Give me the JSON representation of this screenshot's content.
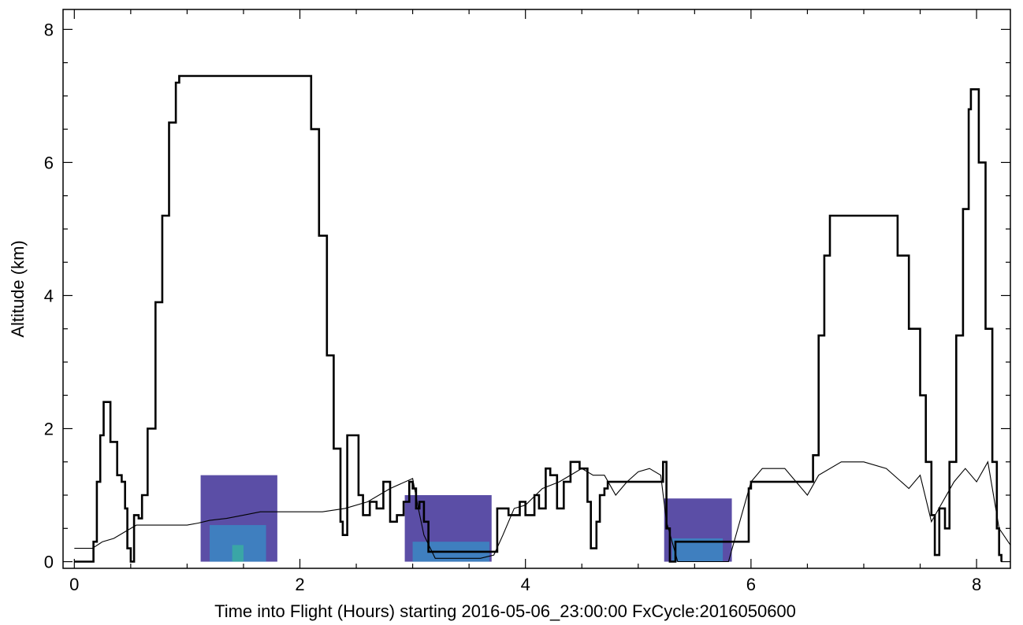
{
  "chart_data": {
    "type": "line",
    "title": "",
    "xlabel": "Time into Flight (Hours) starting 2016-05-06_23:00:00  FxCycle:2016050600",
    "ylabel": "Altitude (km)",
    "xlim": [
      -0.1,
      8.3
    ],
    "ylim": [
      -0.1,
      8.3
    ],
    "x_ticks": [
      0,
      2,
      4,
      6,
      8
    ],
    "y_ticks": [
      0,
      2,
      4,
      6,
      8
    ],
    "grid": false,
    "legend": "none",
    "colors": {
      "flight_track": "#000000",
      "terrain": "#000000",
      "level_1": "#5b4ea6",
      "level_2": "#3f7fbf",
      "level_3": "#3aa6a6"
    },
    "series": [
      {
        "style": "thick",
        "points": [
          [
            0.0,
            0.0
          ],
          [
            0.16,
            0.0
          ],
          [
            0.17,
            0.3
          ],
          [
            0.2,
            1.2
          ],
          [
            0.23,
            1.9
          ],
          [
            0.26,
            2.4
          ],
          [
            0.29,
            2.4
          ],
          [
            0.32,
            1.8
          ],
          [
            0.35,
            1.8
          ],
          [
            0.38,
            1.3
          ],
          [
            0.42,
            1.2
          ],
          [
            0.45,
            0.8
          ],
          [
            0.47,
            0.2
          ],
          [
            0.5,
            0.0
          ],
          [
            0.53,
            0.7
          ],
          [
            0.57,
            0.65
          ],
          [
            0.6,
            1.0
          ],
          [
            0.65,
            2.0
          ],
          [
            0.72,
            3.9
          ],
          [
            0.78,
            5.2
          ],
          [
            0.84,
            6.6
          ],
          [
            0.9,
            7.2
          ],
          [
            0.93,
            7.3
          ],
          [
            2.05,
            7.3
          ],
          [
            2.1,
            6.5
          ],
          [
            2.17,
            4.9
          ],
          [
            2.24,
            3.1
          ],
          [
            2.3,
            1.7
          ],
          [
            2.36,
            0.6
          ],
          [
            2.38,
            0.4
          ],
          [
            2.42,
            1.9
          ],
          [
            2.48,
            1.9
          ],
          [
            2.52,
            1.0
          ],
          [
            2.56,
            0.7
          ],
          [
            2.62,
            0.9
          ],
          [
            2.68,
            0.8
          ],
          [
            2.74,
            1.2
          ],
          [
            2.8,
            0.6
          ],
          [
            2.86,
            0.7
          ],
          [
            2.92,
            0.9
          ],
          [
            2.97,
            1.2
          ],
          [
            3.0,
            1.1
          ],
          [
            3.03,
            0.8
          ],
          [
            3.06,
            0.9
          ],
          [
            3.1,
            0.6
          ],
          [
            3.14,
            0.15
          ],
          [
            3.5,
            0.15
          ],
          [
            3.7,
            0.15
          ],
          [
            3.75,
            0.8
          ],
          [
            3.85,
            0.7
          ],
          [
            3.95,
            0.9
          ],
          [
            4.0,
            0.7
          ],
          [
            4.08,
            1.0
          ],
          [
            4.12,
            0.8
          ],
          [
            4.18,
            1.4
          ],
          [
            4.22,
            1.3
          ],
          [
            4.28,
            0.8
          ],
          [
            4.34,
            1.2
          ],
          [
            4.4,
            1.5
          ],
          [
            4.48,
            1.4
          ],
          [
            4.55,
            0.9
          ],
          [
            4.58,
            0.2
          ],
          [
            4.63,
            0.6
          ],
          [
            4.66,
            1.0
          ],
          [
            4.7,
            1.1
          ],
          [
            4.73,
            1.2
          ],
          [
            4.78,
            1.2
          ],
          [
            5.2,
            1.2
          ],
          [
            5.22,
            1.5
          ],
          [
            5.25,
            0.5
          ],
          [
            5.28,
            0.0
          ],
          [
            5.33,
            0.3
          ],
          [
            5.9,
            0.3
          ],
          [
            5.98,
            1.1
          ],
          [
            6.0,
            1.2
          ],
          [
            6.5,
            1.2
          ],
          [
            6.55,
            1.6
          ],
          [
            6.6,
            3.4
          ],
          [
            6.65,
            4.6
          ],
          [
            6.7,
            5.2
          ],
          [
            7.25,
            5.2
          ],
          [
            7.3,
            4.6
          ],
          [
            7.4,
            3.5
          ],
          [
            7.5,
            2.5
          ],
          [
            7.55,
            1.5
          ],
          [
            7.6,
            0.7
          ],
          [
            7.63,
            0.1
          ],
          [
            7.67,
            0.8
          ],
          [
            7.72,
            0.5
          ],
          [
            7.76,
            1.5
          ],
          [
            7.82,
            3.4
          ],
          [
            7.88,
            5.3
          ],
          [
            7.93,
            6.8
          ],
          [
            7.95,
            7.1
          ],
          [
            7.98,
            7.1
          ],
          [
            8.02,
            6.0
          ],
          [
            8.08,
            3.5
          ],
          [
            8.14,
            1.5
          ],
          [
            8.18,
            0.5
          ],
          [
            8.2,
            0.1
          ],
          [
            8.22,
            0.0
          ]
        ]
      },
      {
        "style": "thin",
        "points": [
          [
            0.0,
            0.2
          ],
          [
            0.16,
            0.2
          ],
          [
            0.25,
            0.3
          ],
          [
            0.35,
            0.35
          ],
          [
            0.45,
            0.45
          ],
          [
            0.55,
            0.55
          ],
          [
            0.7,
            0.55
          ],
          [
            0.85,
            0.55
          ],
          [
            1.0,
            0.55
          ],
          [
            1.1,
            0.58
          ],
          [
            1.2,
            0.62
          ],
          [
            1.35,
            0.65
          ],
          [
            1.5,
            0.7
          ],
          [
            1.65,
            0.75
          ],
          [
            1.8,
            0.75
          ],
          [
            2.0,
            0.75
          ],
          [
            2.2,
            0.75
          ],
          [
            2.4,
            0.8
          ],
          [
            2.6,
            0.9
          ],
          [
            2.8,
            1.1
          ],
          [
            3.0,
            1.25
          ],
          [
            3.05,
            0.8
          ],
          [
            3.1,
            0.4
          ],
          [
            3.2,
            0.05
          ],
          [
            3.5,
            0.05
          ],
          [
            3.6,
            0.05
          ],
          [
            3.72,
            0.1
          ],
          [
            3.8,
            0.4
          ],
          [
            3.9,
            0.8
          ],
          [
            4.0,
            0.85
          ],
          [
            4.15,
            1.1
          ],
          [
            4.3,
            1.2
          ],
          [
            4.45,
            1.35
          ],
          [
            4.5,
            1.4
          ],
          [
            4.6,
            1.3
          ],
          [
            4.7,
            1.3
          ],
          [
            4.8,
            1.0
          ],
          [
            4.9,
            1.2
          ],
          [
            5.0,
            1.35
          ],
          [
            5.1,
            1.4
          ],
          [
            5.2,
            1.3
          ],
          [
            5.25,
            0.6
          ],
          [
            5.35,
            0.0
          ],
          [
            5.6,
            0.0
          ],
          [
            5.75,
            0.0
          ],
          [
            5.8,
            0.0
          ],
          [
            6.0,
            1.2
          ],
          [
            6.1,
            1.4
          ],
          [
            6.3,
            1.4
          ],
          [
            6.5,
            1.0
          ],
          [
            6.6,
            1.3
          ],
          [
            6.8,
            1.5
          ],
          [
            7.0,
            1.5
          ],
          [
            7.2,
            1.4
          ],
          [
            7.4,
            1.1
          ],
          [
            7.5,
            1.3
          ],
          [
            7.6,
            0.6
          ],
          [
            7.7,
            0.9
          ],
          [
            7.8,
            1.2
          ],
          [
            7.9,
            1.4
          ],
          [
            8.0,
            1.2
          ],
          [
            8.1,
            1.5
          ],
          [
            8.2,
            0.5
          ],
          [
            8.3,
            0.25
          ]
        ]
      }
    ],
    "shaded_regions": [
      {
        "level": 1,
        "x": [
          1.12,
          1.8
        ],
        "y": [
          0.0,
          1.3
        ]
      },
      {
        "level": 2,
        "x": [
          1.2,
          1.7
        ],
        "y": [
          0.0,
          0.55
        ]
      },
      {
        "level": 3,
        "x": [
          1.4,
          1.5
        ],
        "y": [
          0.0,
          0.25
        ]
      },
      {
        "level": 1,
        "x": [
          2.93,
          3.7
        ],
        "y": [
          0.0,
          1.0
        ]
      },
      {
        "level": 2,
        "x": [
          3.0,
          3.68
        ],
        "y": [
          0.0,
          0.3
        ]
      },
      {
        "level": 1,
        "x": [
          5.23,
          5.83
        ],
        "y": [
          0.0,
          0.95
        ]
      },
      {
        "level": 2,
        "x": [
          5.3,
          5.75
        ],
        "y": [
          0.0,
          0.35
        ]
      }
    ]
  }
}
